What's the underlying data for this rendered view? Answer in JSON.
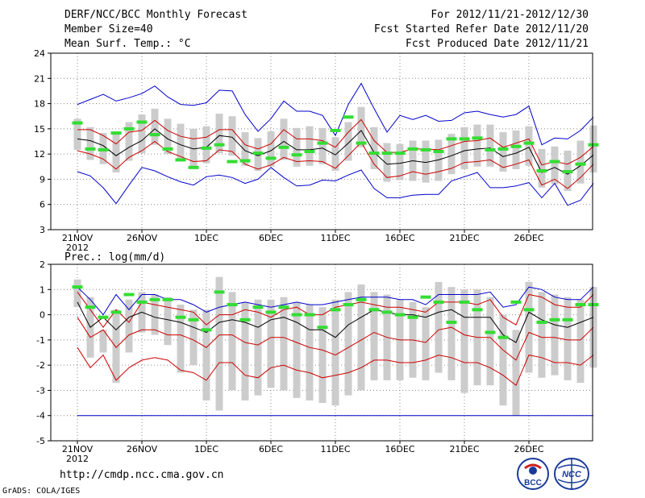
{
  "header": {
    "title": "DERF/NCC/BCC Monthly Forecast",
    "member_size": "Member Size=40",
    "variable": "Mean Surf. Temp.: °C",
    "period": "For 2012/11/21-2012/12/30",
    "started": "Fcst Started Refer Date 2012/11/20",
    "produced": "Fcst Produced Date 2012/11/21"
  },
  "footer": {
    "url": "http://cmdp.ncc.cma.gov.cn",
    "credit": "GrADS: COLA/IGES"
  },
  "logos": {
    "bcc_text": "BCC",
    "ncc_text": "NCC"
  },
  "colors": {
    "envelope": "#0000cc",
    "spread": "#cc0000",
    "mean": "#000000",
    "obs": "#33dd33",
    "box": "#cccccc",
    "grid": "#888888"
  },
  "chart_data": [
    {
      "type": "line",
      "title": "Mean Surf. Temp.: °C",
      "ylim": [
        3,
        24
      ],
      "yticks": [
        3,
        6,
        9,
        12,
        15,
        18,
        21,
        24
      ],
      "x_ticks": [
        {
          "day": 0,
          "label": "21NOV",
          "sub": "2012"
        },
        {
          "day": 5,
          "label": "26NOV"
        },
        {
          "day": 10,
          "label": "1DEC"
        },
        {
          "day": 15,
          "label": "6DEC"
        },
        {
          "day": 20,
          "label": "11DEC"
        },
        {
          "day": 25,
          "label": "16DEC"
        },
        {
          "day": 30,
          "label": "21DEC"
        },
        {
          "day": 35,
          "label": "26DEC"
        }
      ],
      "series": [
        {
          "name": "Max",
          "color": "#0000cc",
          "values": [
            17.9,
            18.5,
            19.1,
            18.3,
            18.7,
            19.2,
            20.1,
            18.8,
            17.9,
            17.8,
            18.1,
            19.6,
            19.5,
            16.7,
            14.7,
            16.2,
            18.3,
            17.1,
            17.1,
            16.6,
            14.2,
            17.9,
            20.4,
            17.4,
            14.6,
            16.6,
            16.1,
            16.6,
            15.9,
            16.0,
            16.9,
            17.1,
            16.7,
            16.4,
            16.7,
            17.7,
            13.1,
            13.9,
            13.8,
            14.8,
            16.4
          ]
        },
        {
          "name": "Upper",
          "color": "#cc0000",
          "values": [
            14.9,
            14.9,
            14.2,
            13.2,
            14.6,
            14.8,
            16.0,
            14.8,
            14.1,
            13.8,
            14.0,
            14.9,
            14.9,
            13.1,
            12.6,
            13.2,
            14.9,
            13.8,
            13.8,
            13.6,
            12.8,
            14.6,
            16.1,
            13.6,
            12.2,
            12.2,
            12.6,
            12.6,
            12.5,
            13.0,
            13.5,
            13.6,
            13.9,
            12.8,
            13.3,
            13.8,
            10.7,
            11.1,
            10.8,
            11.6,
            12.9
          ]
        },
        {
          "name": "Mean",
          "color": "#000000",
          "values": [
            13.8,
            13.6,
            13.0,
            11.8,
            12.8,
            13.6,
            15.0,
            13.8,
            13.1,
            12.6,
            12.8,
            14.2,
            14.0,
            12.4,
            11.8,
            12.4,
            13.5,
            12.5,
            12.5,
            12.7,
            11.9,
            13.3,
            14.8,
            12.2,
            10.8,
            10.9,
            11.2,
            11.0,
            11.3,
            11.8,
            12.4,
            12.6,
            12.7,
            11.7,
            12.1,
            12.8,
            9.8,
            10.4,
            9.6,
            10.6,
            11.9
          ]
        },
        {
          "name": "Lower",
          "color": "#cc0000",
          "values": [
            12.4,
            12.0,
            11.4,
            10.2,
            11.6,
            12.4,
            13.5,
            12.3,
            11.7,
            11.1,
            11.2,
            12.5,
            12.3,
            10.8,
            10.2,
            10.7,
            11.6,
            11.1,
            11.2,
            11.1,
            10.3,
            11.8,
            13.4,
            10.8,
            9.2,
            9.4,
            9.9,
            9.6,
            9.9,
            10.3,
            11.0,
            11.1,
            11.3,
            10.4,
            10.8,
            11.3,
            8.3,
            9.0,
            7.9,
            9.2,
            10.8
          ]
        },
        {
          "name": "Min",
          "color": "#0000cc",
          "values": [
            9.9,
            9.4,
            8.0,
            6.1,
            8.3,
            10.4,
            10.0,
            9.3,
            8.7,
            8.3,
            9.3,
            9.5,
            9.2,
            8.5,
            9.0,
            10.4,
            9.2,
            8.2,
            8.3,
            8.9,
            8.8,
            9.5,
            10.1,
            7.9,
            6.8,
            6.8,
            7.1,
            7.2,
            7.2,
            8.8,
            9.3,
            9.8,
            8.0,
            8.0,
            8.2,
            8.6,
            6.8,
            8.5,
            5.9,
            6.5,
            8.5
          ]
        }
      ],
      "observed": [
        15.7,
        12.6,
        12.5,
        14.5,
        15.0,
        15.8,
        14.3,
        12.6,
        11.3,
        10.4,
        12.7,
        13.1,
        11.1,
        11.2,
        12.1,
        11.5,
        12.8,
        11.9,
        12.3,
        13.3,
        14.8,
        16.4,
        13.3,
        12.1,
        12.1,
        12.1,
        12.6,
        12.5,
        12.3,
        13.8,
        13.8,
        13.9,
        12.5,
        12.6,
        12.9,
        13.3,
        10.0,
        11.1,
        9.9,
        10.8,
        13.1
      ],
      "box_low": [
        12.5,
        11.3,
        10.8,
        9.8,
        11.2,
        12.1,
        13.1,
        12.0,
        11.3,
        10.5,
        10.9,
        12.1,
        11.8,
        10.6,
        10.0,
        10.5,
        11.3,
        10.5,
        10.6,
        10.8,
        10.0,
        11.2,
        12.8,
        10.2,
        8.7,
        8.9,
        8.8,
        8.6,
        8.8,
        9.6,
        10.2,
        10.5,
        10.5,
        9.9,
        10.2,
        10.6,
        8.0,
        8.4,
        7.6,
        8.5,
        9.8
      ],
      "box_high": [
        16.2,
        15.2,
        14.5,
        14.6,
        15.8,
        16.7,
        17.4,
        16.2,
        15.6,
        15.0,
        15.3,
        16.8,
        16.5,
        14.6,
        13.9,
        14.7,
        16.2,
        15.1,
        15.3,
        15.1,
        14.0,
        15.8,
        17.6,
        15.2,
        13.3,
        13.2,
        13.6,
        13.6,
        13.7,
        14.4,
        15.2,
        15.5,
        15.5,
        14.6,
        14.8,
        15.3,
        12.6,
        12.9,
        12.4,
        13.6,
        15.4
      ]
    },
    {
      "type": "line",
      "title": "Prec.: log(mm/d)",
      "ylim": [
        -5,
        2
      ],
      "yticks": [
        -5,
        -4,
        -3,
        -2,
        -1,
        0,
        1,
        2
      ],
      "x_ticks": [
        {
          "day": 0,
          "label": "21NOV",
          "sub": "2012"
        },
        {
          "day": 5,
          "label": "26NOV"
        },
        {
          "day": 10,
          "label": "1DEC"
        },
        {
          "day": 15,
          "label": "6DEC"
        },
        {
          "day": 20,
          "label": "11DEC"
        },
        {
          "day": 25,
          "label": "16DEC"
        },
        {
          "day": 30,
          "label": "21DEC"
        },
        {
          "day": 35,
          "label": "26DEC"
        }
      ],
      "series": [
        {
          "name": "Max",
          "color": "#0000cc",
          "values": [
            1.1,
            0.6,
            0.0,
            0.8,
            0.2,
            0.8,
            0.8,
            0.6,
            0.6,
            0.4,
            0.1,
            0.3,
            0.4,
            0.5,
            0.4,
            0.3,
            0.4,
            0.5,
            0.4,
            0.4,
            0.5,
            0.6,
            0.7,
            0.7,
            0.7,
            0.6,
            0.6,
            0.4,
            0.8,
            0.8,
            0.8,
            0.8,
            0.9,
            0.3,
            0.4,
            1.1,
            1.0,
            0.7,
            0.6,
            0.6,
            1.1
          ]
        },
        {
          "name": "Upper",
          "color": "#cc0000",
          "values": [
            0.9,
            0.2,
            -0.5,
            0.2,
            -0.3,
            0.5,
            0.4,
            0.3,
            0.2,
            0.1,
            -0.4,
            0.0,
            0.0,
            0.2,
            0.1,
            -0.1,
            0.2,
            0.3,
            0.0,
            0.0,
            0.3,
            0.4,
            0.5,
            0.4,
            0.3,
            0.3,
            0.2,
            0.1,
            0.5,
            0.5,
            0.5,
            0.4,
            0.6,
            -0.1,
            -0.4,
            0.8,
            0.7,
            0.4,
            0.3,
            0.3,
            0.8
          ]
        },
        {
          "name": "Mean",
          "color": "#000000",
          "values": [
            0.5,
            -0.5,
            -0.1,
            -0.6,
            -0.1,
            0.1,
            -0.1,
            -0.2,
            -0.3,
            -0.5,
            -0.7,
            -0.3,
            -0.2,
            -0.3,
            -0.5,
            -0.2,
            -0.1,
            -0.3,
            -0.6,
            -0.6,
            -0.9,
            -0.4,
            -0.1,
            0.2,
            0.1,
            0.0,
            0.0,
            -0.1,
            0.1,
            0.2,
            -0.1,
            -0.1,
            -0.1,
            -0.8,
            -1.1,
            0.1,
            -0.2,
            -0.4,
            -0.5,
            -0.3,
            -0.1
          ]
        },
        {
          "name": "Lower",
          "color": "#cc0000",
          "values": [
            -0.1,
            -0.9,
            -0.6,
            -1.3,
            -0.8,
            -0.6,
            -0.6,
            -0.8,
            -0.8,
            -1.0,
            -1.3,
            -0.8,
            -0.8,
            -1.1,
            -1.2,
            -0.9,
            -0.9,
            -1.1,
            -1.3,
            -1.4,
            -1.6,
            -1.3,
            -1.0,
            -0.7,
            -0.9,
            -1.0,
            -1.0,
            -1.1,
            -0.6,
            -0.5,
            -0.8,
            -0.9,
            -0.9,
            -1.4,
            -1.8,
            -0.7,
            -0.9,
            -0.9,
            -1.0,
            -1.0,
            -0.5
          ]
        },
        {
          "name": "Lowest",
          "color": "#cc0000",
          "values": [
            -1.3,
            -2.1,
            -1.6,
            -2.6,
            -2.1,
            -1.8,
            -1.7,
            -1.8,
            -2.2,
            -2.3,
            -2.6,
            -1.9,
            -1.9,
            -2.4,
            -2.5,
            -2.1,
            -2.0,
            -2.2,
            -2.3,
            -2.5,
            -2.4,
            -2.3,
            -2.1,
            -1.8,
            -1.8,
            -1.9,
            -1.9,
            -1.8,
            -1.6,
            -1.7,
            -1.9,
            -1.9,
            -2.1,
            -2.4,
            -2.8,
            -1.6,
            -1.7,
            -1.9,
            -1.9,
            -2.0,
            -1.6
          ]
        },
        {
          "name": "Min",
          "color": "#0000cc",
          "values": [
            -4,
            -4,
            -4,
            -4,
            -4,
            -4,
            -4,
            -4,
            -4,
            -4,
            -4,
            -4,
            -4,
            -4,
            -4,
            -4,
            -4,
            -4,
            -4,
            -4,
            -4,
            -4,
            -4,
            -4,
            -4,
            -4,
            -4,
            -4,
            -4,
            -4,
            -4,
            -4,
            -4,
            -4,
            -4,
            -4,
            -4,
            -4,
            -4,
            -4,
            -4
          ]
        }
      ],
      "observed": [
        1.1,
        0.3,
        -0.1,
        0.1,
        0.8,
        0.5,
        0.6,
        0.6,
        -0.1,
        -0.2,
        -0.6,
        0.9,
        0.4,
        -0.2,
        0.3,
        0.1,
        0.3,
        0.0,
        0.0,
        -0.5,
        0.2,
        0.4,
        0.6,
        0.2,
        0.1,
        0.0,
        -0.1,
        0.7,
        0.5,
        -0.3,
        0.5,
        0.2,
        -0.7,
        -0.9,
        0.5,
        0.2,
        -0.3,
        -0.2,
        -0.2,
        0.4,
        0.4
      ],
      "box_low": [
        0.3,
        -1.7,
        -1.5,
        -2.7,
        -1.5,
        -0.7,
        -0.8,
        -1.2,
        -2.3,
        -2.0,
        -3.4,
        -3.8,
        -3.0,
        -3.4,
        -3.2,
        -2.9,
        -3.0,
        -3.3,
        -3.4,
        -3.5,
        -3.6,
        -3.2,
        -3.0,
        -2.6,
        -2.6,
        -2.6,
        -2.5,
        -2.6,
        -2.3,
        -2.6,
        -3.1,
        -2.8,
        -2.8,
        -3.6,
        -4.0,
        -2.3,
        -2.5,
        -2.4,
        -2.6,
        -2.7,
        -2.1
      ],
      "box_high": [
        1.4,
        0.7,
        -0.6,
        0.2,
        0.6,
        0.9,
        0.8,
        0.7,
        0.4,
        0.2,
        0.2,
        1.5,
        0.9,
        0.5,
        0.6,
        0.6,
        0.7,
        0.5,
        0.4,
        0.3,
        0.6,
        0.9,
        1.2,
        0.9,
        0.8,
        0.6,
        0.5,
        0.3,
        1.3,
        1.1,
        1.0,
        1.0,
        0.7,
        0.0,
        -0.6,
        1.3,
        0.9,
        0.8,
        0.7,
        0.6,
        1.1
      ]
    }
  ]
}
